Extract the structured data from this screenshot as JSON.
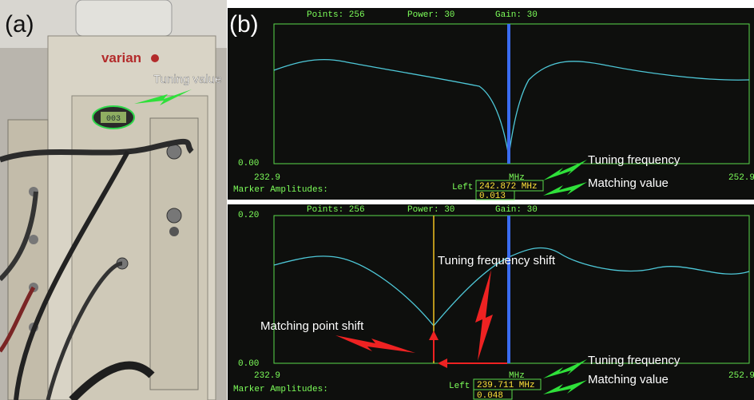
{
  "panel_a": {
    "label": "(a)",
    "brand": "varian",
    "display": "003",
    "annotation": "Tuning value"
  },
  "panel_b": {
    "label": "(b)",
    "top_screen": {
      "points": "Points: 256",
      "power": "Power: 30",
      "gain": "Gain: 30",
      "y_bottom": "0.00",
      "x_left": "232.9",
      "x_unit": "MHz",
      "x_right": "252.9",
      "marker": "Marker Amplitudes:",
      "left": "Left",
      "frequency": "242.872 MHz",
      "amplitude": "0.013",
      "annotations": [
        "Tuning frequency",
        "Matching value"
      ]
    },
    "bottom_screen": {
      "y_top": "0.20",
      "points": "Points: 256",
      "power": "Power: 30",
      "gain": "Gain: 30",
      "y_bottom": "0.00",
      "x_left": "232.9",
      "x_unit": "MHz",
      "x_right": "252.9",
      "marker": "Marker Amplitudes:",
      "left": "Left",
      "frequency": "239.711 MHz",
      "amplitude": "0.048",
      "annotations": [
        "Tuning frequency shift",
        "Matching point shift",
        "Tuning frequency",
        "Matching value"
      ]
    }
  }
}
